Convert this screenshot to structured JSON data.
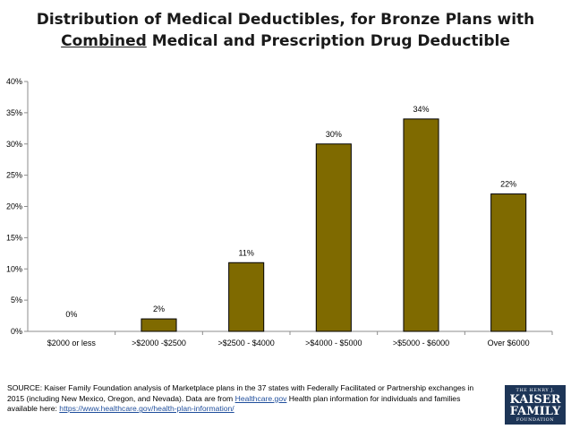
{
  "title": {
    "line1": "Distribution of Medical Deductibles, for Bronze Plans with",
    "line2_underlined": "Combined",
    "line2_rest": " Medical and Prescription Drug Deductible"
  },
  "chart_data": {
    "type": "bar",
    "title": "Distribution of Medical Deductibles, for Bronze Plans with Combined Medical and Prescription Drug Deductible",
    "categories": [
      "$2000 or less",
      ">$2000 -$2500",
      ">$2500 - $4000",
      ">$4000 - $5000",
      ">$5000 - $6000",
      "Over $6000"
    ],
    "values": [
      0,
      2,
      11,
      30,
      34,
      22
    ],
    "data_labels": [
      "0%",
      "2%",
      "11%",
      "30%",
      "34%",
      "22%"
    ],
    "ylim": [
      0,
      40
    ],
    "yticks": [
      0,
      5,
      10,
      15,
      20,
      25,
      30,
      35,
      40
    ],
    "ytick_labels": [
      "0%",
      "5%",
      "10%",
      "15%",
      "20%",
      "25%",
      "30%",
      "35%",
      "40%"
    ],
    "xlabel": "",
    "ylabel": "",
    "bar_color": "#7f6a00",
    "bar_edge_color": "#000000",
    "grid": false
  },
  "source": {
    "text_before": "SOURCE: Kaiser Family Foundation analysis of Marketplace plans in the 37 states with Federally Facilitated or Partnership exchanges in 2015 (including New Mexico, Oregon, and Nevada). Data are from ",
    "link1": "Healthcare.gov",
    "text_middle": " Health plan information for individuals and families available here: ",
    "link2": "https://www.healthcare.gov/health-plan-information/"
  },
  "logo": {
    "line1": "THE HENRY J.",
    "line2a": "KAISER",
    "line2b": "FAMILY",
    "line3": "FOUNDATION"
  }
}
